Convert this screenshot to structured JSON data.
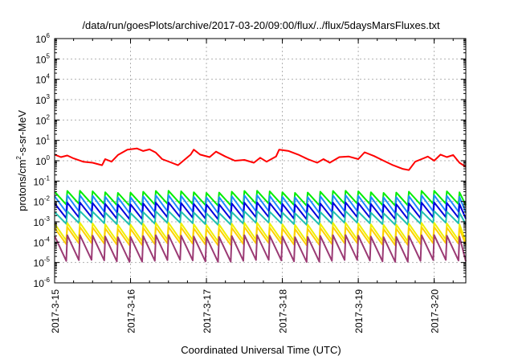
{
  "chart_data": {
    "type": "line",
    "title": "/data/run/goesPlots/archive/2017-03-20/09:00/flux/../flux/5daysMarsFluxes.txt",
    "xlabel": "Coordinated Universal Time (UTC)",
    "ylabel": "protons/cm2-s-sr-MeV",
    "yscale": "log",
    "ylim": [
      1e-06,
      1000000.0
    ],
    "xlim": [
      "2017-03-15 00:00",
      "2017-03-20 10:00"
    ],
    "x_ticks": [
      "2017-3-15",
      "2017-3-16",
      "2017-3-17",
      "2017-3-18",
      "2017-3-19",
      "2017-3-20"
    ],
    "y_ticks": [
      {
        "base": "10",
        "exp": "-6"
      },
      {
        "base": "10",
        "exp": "-5"
      },
      {
        "base": "10",
        "exp": "-4"
      },
      {
        "base": "10",
        "exp": "-3"
      },
      {
        "base": "10",
        "exp": "-2"
      },
      {
        "base": "10",
        "exp": "-1"
      },
      {
        "base": "10",
        "exp": "0"
      },
      {
        "base": "10",
        "exp": "1"
      },
      {
        "base": "10",
        "exp": "2"
      },
      {
        "base": "10",
        "exp": "3"
      },
      {
        "base": "10",
        "exp": "4"
      },
      {
        "base": "10",
        "exp": "5"
      },
      {
        "base": "10",
        "exp": "6"
      }
    ],
    "grid": true,
    "series": [
      {
        "color": "#ff0000",
        "values": [
          [
            "2017-03-15 00:00",
            2.0
          ],
          [
            "2017-03-15 02:00",
            1.5
          ],
          [
            "2017-03-15 04:00",
            1.8
          ],
          [
            "2017-03-15 06:00",
            1.3
          ],
          [
            "2017-03-15 09:00",
            0.9
          ],
          [
            "2017-03-15 12:00",
            0.8
          ],
          [
            "2017-03-15 15:00",
            0.6
          ],
          [
            "2017-03-15 16:00",
            1.2
          ],
          [
            "2017-03-15 18:00",
            0.9
          ],
          [
            "2017-03-15 20:00",
            1.9
          ],
          [
            "2017-03-15 23:00",
            3.5
          ],
          [
            "2017-03-16 02:00",
            4.0
          ],
          [
            "2017-03-16 04:00",
            3.0
          ],
          [
            "2017-03-16 06:00",
            3.6
          ],
          [
            "2017-03-16 08:00",
            2.5
          ],
          [
            "2017-03-16 10:00",
            1.2
          ],
          [
            "2017-03-16 13:00",
            0.8
          ],
          [
            "2017-03-16 15:00",
            0.6
          ],
          [
            "2017-03-16 17:00",
            1.1
          ],
          [
            "2017-03-16 19:00",
            2.0
          ],
          [
            "2017-03-16 20:00",
            3.5
          ],
          [
            "2017-03-16 22:00",
            2.0
          ],
          [
            "2017-03-17 01:00",
            1.5
          ],
          [
            "2017-03-17 03:00",
            2.8
          ],
          [
            "2017-03-17 06:00",
            1.6
          ],
          [
            "2017-03-17 09:00",
            1.0
          ],
          [
            "2017-03-17 12:00",
            1.1
          ],
          [
            "2017-03-17 15:00",
            0.8
          ],
          [
            "2017-03-17 17:00",
            1.4
          ],
          [
            "2017-03-17 19:00",
            0.9
          ],
          [
            "2017-03-17 22:00",
            1.6
          ],
          [
            "2017-03-17 23:00",
            3.5
          ],
          [
            "2017-03-18 02:00",
            3.0
          ],
          [
            "2017-03-18 05:00",
            2.0
          ],
          [
            "2017-03-18 08:00",
            1.2
          ],
          [
            "2017-03-18 11:00",
            0.8
          ],
          [
            "2017-03-18 13:00",
            1.2
          ],
          [
            "2017-03-18 15:00",
            0.8
          ],
          [
            "2017-03-18 18:00",
            1.5
          ],
          [
            "2017-03-18 21:00",
            1.6
          ],
          [
            "2017-03-19 00:00",
            1.2
          ],
          [
            "2017-03-19 02:00",
            2.6
          ],
          [
            "2017-03-19 05:00",
            1.7
          ],
          [
            "2017-03-19 08:00",
            1.0
          ],
          [
            "2017-03-19 11:00",
            0.6
          ],
          [
            "2017-03-19 14:00",
            0.4
          ],
          [
            "2017-03-19 16:00",
            0.35
          ],
          [
            "2017-03-19 18:00",
            0.9
          ],
          [
            "2017-03-19 20:00",
            1.2
          ],
          [
            "2017-03-19 22:00",
            1.6
          ],
          [
            "2017-03-20 00:00",
            1.0
          ],
          [
            "2017-03-20 02:00",
            2.0
          ],
          [
            "2017-03-20 04:00",
            1.5
          ],
          [
            "2017-03-20 06:00",
            1.9
          ],
          [
            "2017-03-20 08:00",
            0.8
          ],
          [
            "2017-03-20 10:00",
            0.5
          ]
        ]
      },
      {
        "color": "#00ee00",
        "sawtooth": {
          "period_hours": 4,
          "high": 0.03,
          "low": 0.007
        }
      },
      {
        "color": "#1e8cff",
        "sawtooth": {
          "period_hours": 4,
          "high": 0.018,
          "low": 0.003
        }
      },
      {
        "color": "#0000dd",
        "sawtooth": {
          "period_hours": 4,
          "high": 0.008,
          "low": 0.0015
        }
      },
      {
        "color": "#20c0b0",
        "sawtooth": {
          "period_hours": 4,
          "high": 0.003,
          "low": 0.0008
        }
      },
      {
        "color": "#f0f000",
        "sawtooth": {
          "period_hours": 4,
          "high": 0.0008,
          "low": 0.00012
        }
      },
      {
        "color": "#ffd000",
        "sawtooth": {
          "period_hours": 4,
          "high": 0.0005,
          "low": 8e-05
        }
      },
      {
        "color": "#9b3a74",
        "sawtooth": {
          "period_hours": 4,
          "high": 0.0002,
          "low": 1.2e-05
        }
      }
    ]
  }
}
